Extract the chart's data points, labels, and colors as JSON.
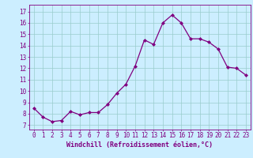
{
  "x": [
    0,
    1,
    2,
    3,
    4,
    5,
    6,
    7,
    8,
    9,
    10,
    11,
    12,
    13,
    14,
    15,
    16,
    17,
    18,
    19,
    20,
    21,
    22,
    23
  ],
  "y": [
    8.5,
    7.7,
    7.3,
    7.4,
    8.2,
    7.9,
    8.1,
    8.1,
    8.8,
    9.8,
    10.6,
    12.2,
    14.5,
    14.1,
    16.0,
    16.7,
    16.0,
    14.6,
    14.6,
    14.3,
    13.7,
    12.1,
    12.0,
    11.4
  ],
  "line_color": "#800080",
  "marker": "D",
  "marker_size": 2.0,
  "bg_color": "#cceeff",
  "grid_color": "#99cccc",
  "xlabel": "Windchill (Refroidissement éolien,°C)",
  "xlabel_color": "#800080",
  "ylabel_ticks": [
    7,
    8,
    9,
    10,
    11,
    12,
    13,
    14,
    15,
    16,
    17
  ],
  "xtick_labels": [
    "0",
    "1",
    "2",
    "3",
    "4",
    "5",
    "6",
    "7",
    "8",
    "9",
    "10",
    "11",
    "12",
    "13",
    "14",
    "15",
    "16",
    "17",
    "18",
    "19",
    "20",
    "21",
    "22",
    "23"
  ],
  "ylim": [
    6.6,
    17.6
  ],
  "xlim": [
    -0.5,
    23.5
  ],
  "tick_color": "#800080",
  "tick_fontsize": 5.5,
  "xlabel_fontsize": 6.0
}
